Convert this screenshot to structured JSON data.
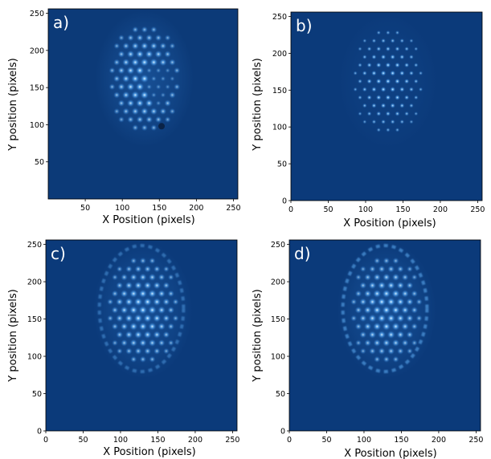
{
  "colors": {
    "background": "#0b3a7a",
    "background_alt": "#0c3a78",
    "spot_core": "#e8f6ff",
    "spot_mid": "#5aa7ee",
    "spot_edge": "#1d5fb0",
    "glow": "#1f5ea8",
    "panel_label": "#ffffff",
    "axis_text": "#000000"
  },
  "panels": [
    {
      "id": "a",
      "label": "a)",
      "xlabel": "X Position (pixels)",
      "ylabel": "Y position (pixels)",
      "x_ticks": [
        "50",
        "100",
        "150",
        "200",
        "250"
      ],
      "y_ticks": [
        "50",
        "100",
        "150",
        "200",
        "250"
      ]
    },
    {
      "id": "b",
      "label": "b)",
      "xlabel": "X Position (pixels)",
      "ylabel": "Y position (pixels)",
      "x_ticks": [
        "0",
        "50",
        "100",
        "150",
        "200",
        "250"
      ],
      "y_ticks": [
        "0",
        "50",
        "100",
        "150",
        "200",
        "250"
      ]
    },
    {
      "id": "c",
      "label": "c)",
      "xlabel": "X Position (pixels)",
      "ylabel": "Y position (pixels)",
      "x_ticks": [
        "0",
        "50",
        "100",
        "150",
        "200",
        "250"
      ],
      "y_ticks": [
        "0",
        "50",
        "100",
        "150",
        "200",
        "250"
      ]
    },
    {
      "id": "d",
      "label": "d)",
      "xlabel": "X Position (pixels)",
      "ylabel": "Y position (pixels)",
      "x_ticks": [
        "0",
        "50",
        "100",
        "150",
        "200",
        "250"
      ],
      "y_ticks": [
        "0",
        "50",
        "100",
        "150",
        "200",
        "250"
      ]
    }
  ]
}
